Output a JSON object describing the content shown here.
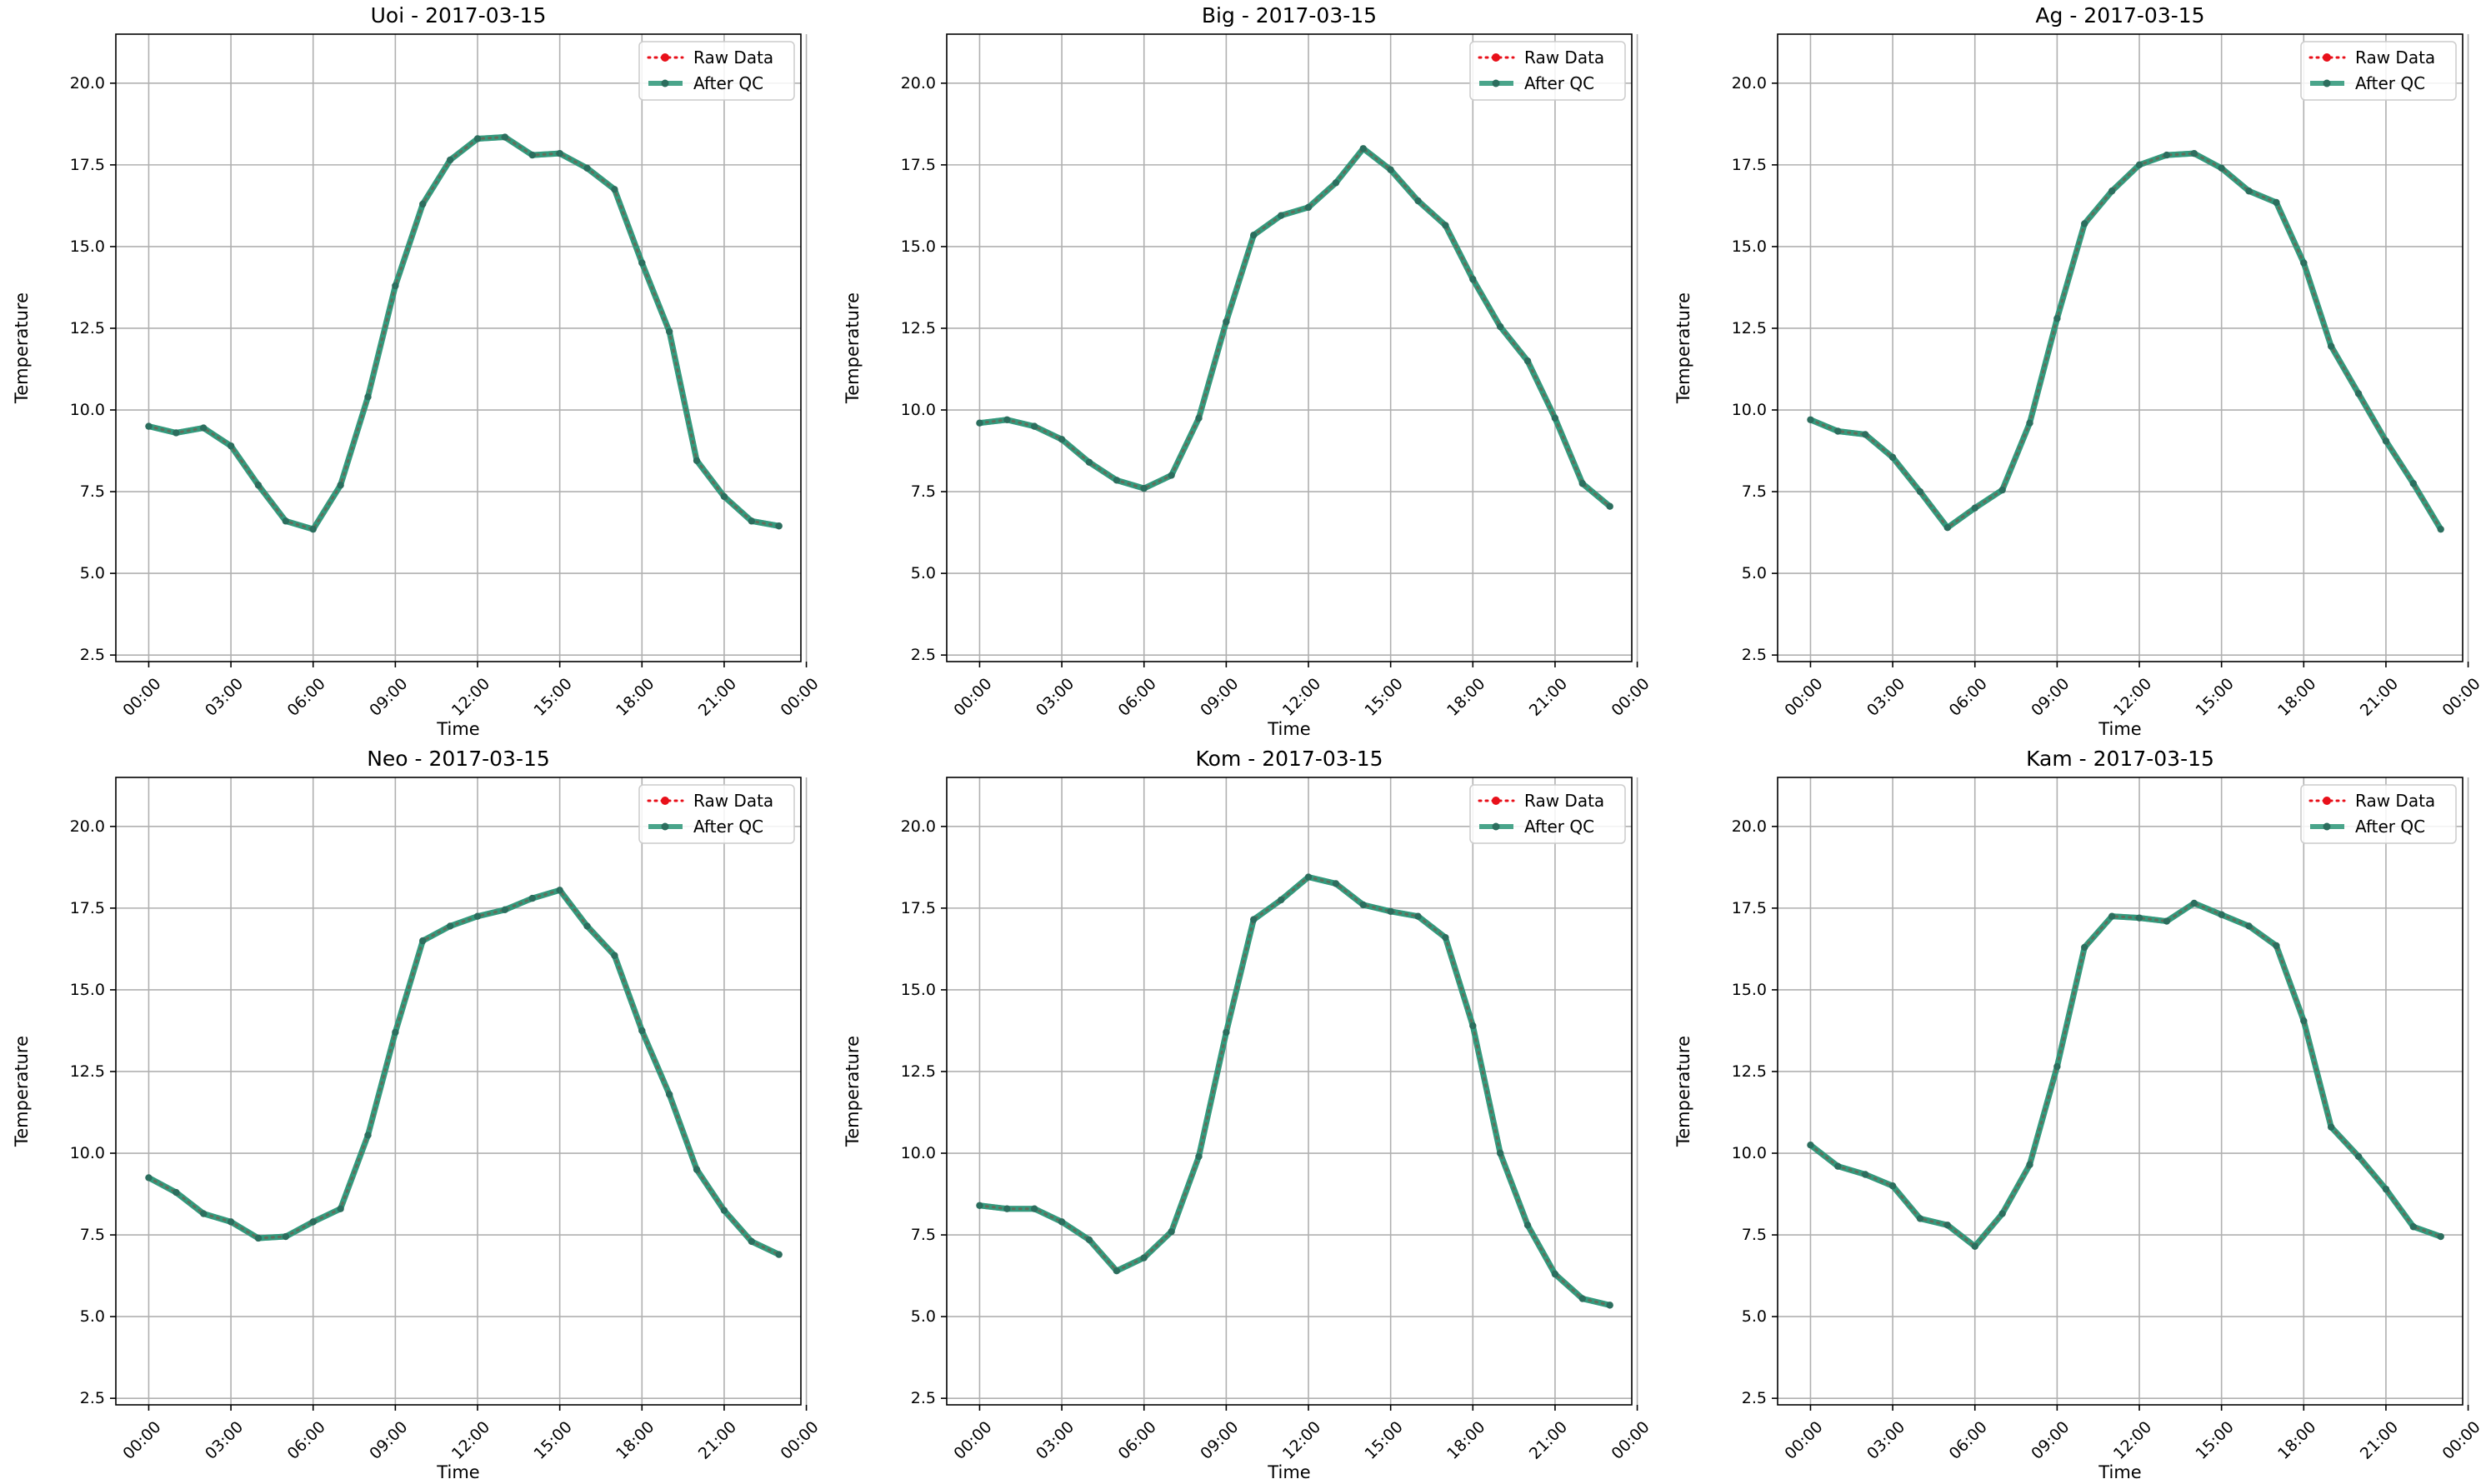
{
  "figure": {
    "x_tick_labels": [
      "00:00",
      "03:00",
      "06:00",
      "09:00",
      "12:00",
      "15:00",
      "18:00",
      "21:00",
      "00:00"
    ],
    "y_tick_labels": [
      "2.5",
      "5.0",
      "7.5",
      "10.0",
      "12.5",
      "15.0",
      "17.5",
      "20.0"
    ],
    "legend": {
      "raw_label": "Raw Data",
      "qc_label": "After QC"
    },
    "colors": {
      "raw": "#e8101a",
      "qc": "#2a9577",
      "grid": "#b0b0b0",
      "axis": "#000000"
    }
  },
  "chart_data": [
    {
      "type": "line",
      "title": "Uoi - 2017-03-15",
      "xlabel": "Time",
      "ylabel": "Temperature",
      "xlim": [
        -1.2,
        23.8
      ],
      "ylim": [
        2.3,
        21.5
      ],
      "grid": true,
      "legend_position": "top-right",
      "x": [
        0,
        1,
        2,
        3,
        4,
        5,
        6,
        7,
        8,
        9,
        10,
        11,
        12,
        13,
        14,
        15,
        16,
        17,
        18,
        19,
        20,
        21,
        22,
        23
      ],
      "series": [
        {
          "name": "Raw Data",
          "values": [
            9.5,
            9.3,
            9.45,
            8.9,
            7.7,
            6.6,
            6.35,
            7.7,
            10.4,
            13.8,
            16.3,
            17.65,
            18.3,
            18.35,
            17.8,
            17.85,
            17.4,
            16.75,
            14.5,
            12.4,
            8.45,
            7.35,
            6.6,
            6.45
          ]
        },
        {
          "name": "After QC",
          "values": [
            9.5,
            9.3,
            9.45,
            8.9,
            7.7,
            6.6,
            6.35,
            7.7,
            10.4,
            13.8,
            16.3,
            17.65,
            18.3,
            18.35,
            17.8,
            17.85,
            17.4,
            16.75,
            14.5,
            12.4,
            8.45,
            7.35,
            6.6,
            6.45
          ]
        }
      ]
    },
    {
      "type": "line",
      "title": "Big - 2017-03-15",
      "xlabel": "Time",
      "ylabel": "Temperature",
      "xlim": [
        -1.2,
        23.8
      ],
      "ylim": [
        2.3,
        21.5
      ],
      "grid": true,
      "legend_position": "top-right",
      "x": [
        0,
        1,
        2,
        3,
        4,
        5,
        6,
        7,
        8,
        9,
        10,
        11,
        12,
        13,
        14,
        15,
        16,
        17,
        18,
        19,
        20,
        21,
        22,
        23
      ],
      "series": [
        {
          "name": "Raw Data",
          "values": [
            9.6,
            9.7,
            9.5,
            9.1,
            8.4,
            7.85,
            7.6,
            8.0,
            9.75,
            12.7,
            15.35,
            15.95,
            16.2,
            16.95,
            18.0,
            17.35,
            16.4,
            15.65,
            14.0,
            12.55,
            11.5,
            9.75,
            7.75,
            7.05
          ]
        },
        {
          "name": "After QC",
          "values": [
            9.6,
            9.7,
            9.5,
            9.1,
            8.4,
            7.85,
            7.6,
            8.0,
            9.75,
            12.7,
            15.35,
            15.95,
            16.2,
            16.95,
            18.0,
            17.35,
            16.4,
            15.65,
            14.0,
            12.55,
            11.5,
            9.75,
            7.75,
            7.05
          ]
        }
      ]
    },
    {
      "type": "line",
      "title": "Ag - 2017-03-15",
      "xlabel": "Time",
      "ylabel": "Temperature",
      "xlim": [
        -1.2,
        23.8
      ],
      "ylim": [
        2.3,
        21.5
      ],
      "grid": true,
      "legend_position": "top-right",
      "x": [
        0,
        1,
        2,
        3,
        4,
        5,
        6,
        7,
        8,
        9,
        10,
        11,
        12,
        13,
        14,
        15,
        16,
        17,
        18,
        19,
        20,
        21,
        22,
        23
      ],
      "series": [
        {
          "name": "Raw Data",
          "values": [
            9.7,
            9.35,
            9.25,
            8.55,
            7.5,
            6.4,
            7.0,
            7.55,
            9.6,
            12.8,
            15.7,
            16.7,
            17.5,
            17.8,
            17.85,
            17.4,
            16.7,
            16.35,
            14.5,
            11.95,
            10.5,
            9.05,
            7.75,
            6.35
          ]
        },
        {
          "name": "After QC",
          "values": [
            9.7,
            9.35,
            9.25,
            8.55,
            7.5,
            6.4,
            7.0,
            7.55,
            9.6,
            12.8,
            15.7,
            16.7,
            17.5,
            17.8,
            17.85,
            17.4,
            16.7,
            16.35,
            14.5,
            11.95,
            10.5,
            9.05,
            7.75,
            6.35
          ]
        }
      ]
    },
    {
      "type": "line",
      "title": "Neo - 2017-03-15",
      "xlabel": "Time",
      "ylabel": "Temperature",
      "xlim": [
        -1.2,
        23.8
      ],
      "ylim": [
        2.3,
        21.5
      ],
      "grid": true,
      "legend_position": "top-right",
      "x": [
        0,
        1,
        2,
        3,
        4,
        5,
        6,
        7,
        8,
        9,
        10,
        11,
        12,
        13,
        14,
        15,
        16,
        17,
        18,
        19,
        20,
        21,
        22,
        23
      ],
      "series": [
        {
          "name": "Raw Data",
          "values": [
            9.25,
            8.8,
            8.15,
            7.9,
            7.4,
            7.45,
            7.9,
            8.3,
            10.55,
            13.7,
            16.5,
            16.95,
            17.25,
            17.45,
            17.8,
            18.05,
            16.95,
            16.05,
            13.75,
            11.8,
            9.5,
            8.25,
            7.3,
            6.9
          ]
        },
        {
          "name": "After QC",
          "values": [
            9.25,
            8.8,
            8.15,
            7.9,
            7.4,
            7.45,
            7.9,
            8.3,
            10.55,
            13.7,
            16.5,
            16.95,
            17.25,
            17.45,
            17.8,
            18.05,
            16.95,
            16.05,
            13.75,
            11.8,
            9.5,
            8.25,
            7.3,
            6.9
          ]
        }
      ]
    },
    {
      "type": "line",
      "title": "Kom - 2017-03-15",
      "xlabel": "Time",
      "ylabel": "Temperature",
      "xlim": [
        -1.2,
        23.8
      ],
      "ylim": [
        2.3,
        21.5
      ],
      "grid": true,
      "legend_position": "top-right",
      "x": [
        0,
        1,
        2,
        3,
        4,
        5,
        6,
        7,
        8,
        9,
        10,
        11,
        12,
        13,
        14,
        15,
        16,
        17,
        18,
        19,
        20,
        21,
        22,
        23
      ],
      "series": [
        {
          "name": "Raw Data",
          "values": [
            8.4,
            8.3,
            8.3,
            7.9,
            7.35,
            6.4,
            6.8,
            7.6,
            9.9,
            13.7,
            17.15,
            17.75,
            18.45,
            18.25,
            17.6,
            17.4,
            17.25,
            16.6,
            13.9,
            10.0,
            7.8,
            6.3,
            5.55,
            5.35
          ]
        },
        {
          "name": "After QC",
          "values": [
            8.4,
            8.3,
            8.3,
            7.9,
            7.35,
            6.4,
            6.8,
            7.6,
            9.9,
            13.7,
            17.15,
            17.75,
            18.45,
            18.25,
            17.6,
            17.4,
            17.25,
            16.6,
            13.9,
            10.0,
            7.8,
            6.3,
            5.55,
            5.35
          ]
        }
      ]
    },
    {
      "type": "line",
      "title": "Kam - 2017-03-15",
      "xlabel": "Time",
      "ylabel": "Temperature",
      "xlim": [
        -1.2,
        23.8
      ],
      "ylim": [
        2.3,
        21.5
      ],
      "grid": true,
      "legend_position": "top-right",
      "x": [
        0,
        1,
        2,
        3,
        4,
        5,
        6,
        7,
        8,
        9,
        10,
        11,
        12,
        13,
        14,
        15,
        16,
        17,
        18,
        19,
        20,
        21,
        22,
        23
      ],
      "series": [
        {
          "name": "Raw Data",
          "values": [
            10.25,
            9.6,
            9.35,
            9.0,
            8.0,
            7.8,
            7.15,
            8.15,
            9.65,
            12.65,
            16.3,
            17.25,
            17.2,
            17.1,
            17.65,
            17.3,
            16.95,
            16.35,
            14.05,
            10.8,
            9.9,
            8.9,
            7.75,
            7.45
          ]
        },
        {
          "name": "After QC",
          "values": [
            10.25,
            9.6,
            9.35,
            9.0,
            8.0,
            7.8,
            7.15,
            8.15,
            9.65,
            12.65,
            16.3,
            17.25,
            17.2,
            17.1,
            17.65,
            17.3,
            16.95,
            16.35,
            14.05,
            10.8,
            9.9,
            8.9,
            7.75,
            7.45
          ]
        }
      ]
    }
  ]
}
